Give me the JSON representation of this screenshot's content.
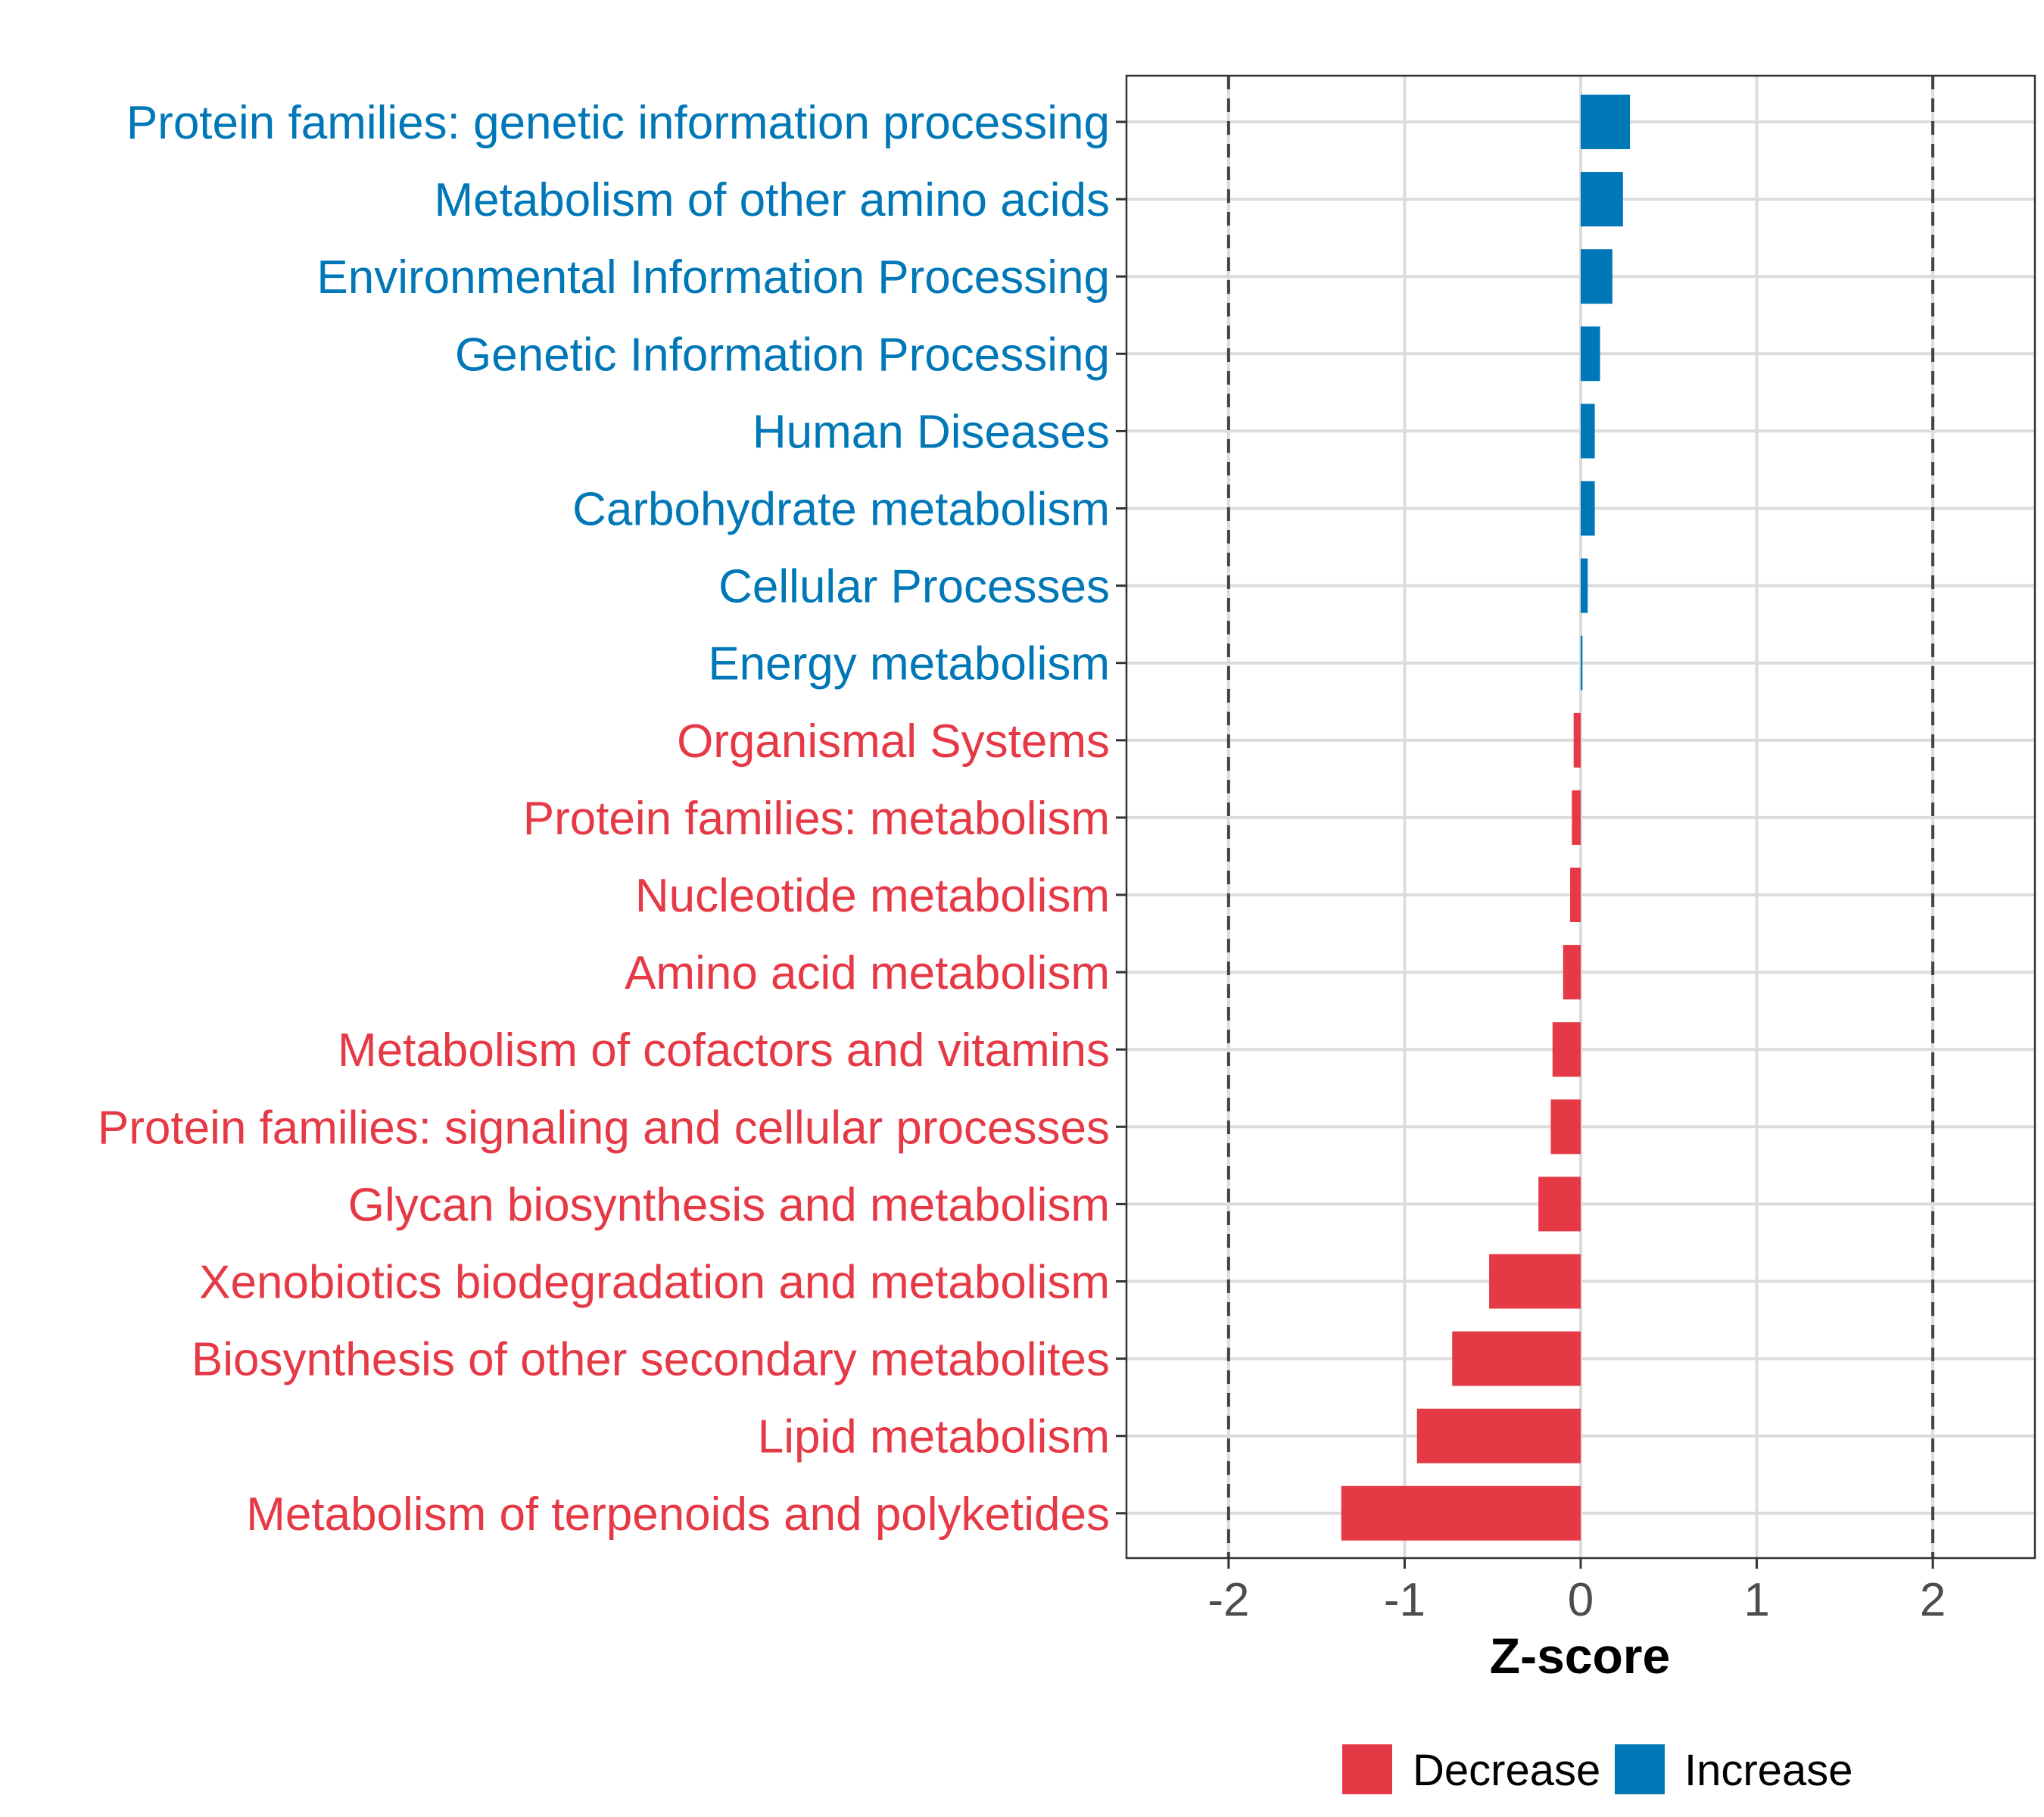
{
  "chart_data": {
    "type": "bar",
    "orientation": "horizontal",
    "title": "",
    "xlabel": "Z-score",
    "ylabel": "",
    "xlim": [
      -2.58,
      2.58
    ],
    "xticks": [
      -2,
      -1,
      0,
      1,
      2
    ],
    "xtick_labels": [
      "-2",
      "-1",
      "0",
      "1",
      "2"
    ],
    "reference_lines": [
      -2,
      2
    ],
    "grid": true,
    "categories": [
      "Protein families: genetic information processing",
      "Metabolism of other amino acids",
      "Environmental Information Processing",
      "Genetic Information Processing",
      "Human Diseases",
      "Carbohydrate metabolism",
      "Cellular Processes",
      "Energy metabolism",
      "Organismal Systems",
      "Protein families: metabolism",
      "Nucleotide metabolism",
      "Amino acid metabolism",
      "Metabolism of cofactors and vitamins",
      "Protein families: signaling and cellular processes",
      "Glycan biosynthesis and metabolism",
      "Xenobiotics biodegradation and metabolism",
      "Biosynthesis of other secondary metabolites",
      "Lipid metabolism",
      "Metabolism of terpenoids and polyketides"
    ],
    "values": [
      0.28,
      0.24,
      0.18,
      0.11,
      0.08,
      0.08,
      0.04,
      0.01,
      -0.04,
      -0.05,
      -0.06,
      -0.1,
      -0.16,
      -0.17,
      -0.24,
      -0.52,
      -0.73,
      -0.93,
      -1.36
    ],
    "groups": [
      "Increase",
      "Increase",
      "Increase",
      "Increase",
      "Increase",
      "Increase",
      "Increase",
      "Increase",
      "Decrease",
      "Decrease",
      "Decrease",
      "Decrease",
      "Decrease",
      "Decrease",
      "Decrease",
      "Decrease",
      "Decrease",
      "Decrease",
      "Decrease"
    ],
    "colors": {
      "Decrease": "#e63946",
      "Increase": "#0077b6"
    },
    "legend": {
      "position": "bottom",
      "entries": [
        {
          "label": "Decrease",
          "color": "#e63946"
        },
        {
          "label": "Increase",
          "color": "#0077b6"
        }
      ]
    }
  }
}
